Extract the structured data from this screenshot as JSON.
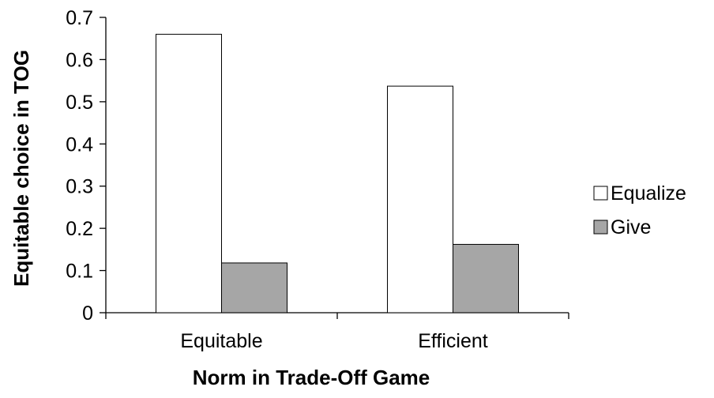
{
  "chart_data": {
    "type": "bar",
    "title": "",
    "xlabel": "Norm in Trade-Off Game",
    "ylabel": "Equitable choice in TOG",
    "categories": [
      "Equitable",
      "Efficient"
    ],
    "series": [
      {
        "name": "Equalize",
        "values": [
          0.66,
          0.537
        ],
        "color": "#ffffff"
      },
      {
        "name": "Give",
        "values": [
          0.118,
          0.162
        ],
        "color": "#a6a6a6"
      }
    ],
    "ylim": [
      0,
      0.7
    ],
    "yticks": [
      "0",
      "0.1",
      "0.2",
      "0.3",
      "0.4",
      "0.5",
      "0.6",
      "0.7"
    ],
    "grid": false,
    "legend_position": "right"
  }
}
